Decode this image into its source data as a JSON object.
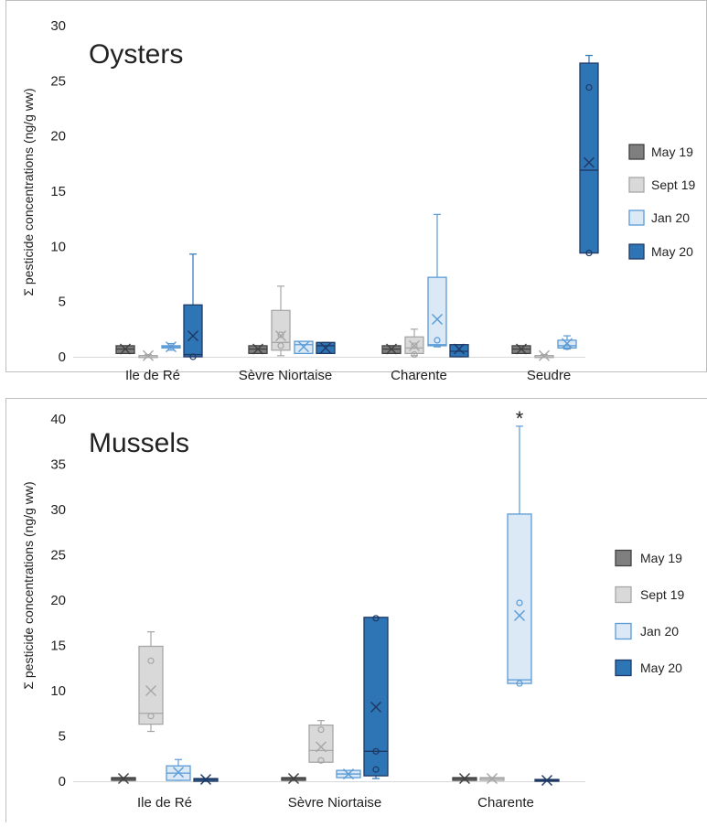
{
  "colors": {
    "May 19": {
      "fill": "#7f7f7f",
      "stroke": "#404040",
      "whisker": "#404040"
    },
    "Sept 19": {
      "fill": "#d9d9d9",
      "stroke": "#a6a6a6",
      "whisker": "#a6a6a6"
    },
    "Jan 20": {
      "fill": "#dbe8f6",
      "stroke": "#5b9bd5",
      "whisker": "#5b9bd5"
    },
    "May 20": {
      "fill": "#2e75b6",
      "stroke": "#1f3864",
      "whisker": "#2e75b6"
    }
  },
  "chart_data": [
    {
      "type": "box",
      "title": "Oysters",
      "ylabel": "Σ pesticide concentrations (ng/g ww)",
      "ylim": [
        0,
        30
      ],
      "yticks": [
        "0",
        "5",
        "10",
        "15",
        "20",
        "25",
        "30"
      ],
      "categories": [
        "Ile de Ré",
        "Sèvre Niortaise",
        "Charente",
        "Seudre"
      ],
      "legend": [
        "May 19",
        "Sept 19",
        "Jan 20",
        "May 20"
      ],
      "legend_position": "right",
      "series": [
        {
          "name": "May 19",
          "boxes": [
            {
              "min": 0.3,
              "q1": 0.3,
              "median": 0.7,
              "q3": 1.0,
              "max": 1.0,
              "mean": 0.7,
              "points": []
            },
            {
              "min": 0.3,
              "q1": 0.3,
              "median": 0.7,
              "q3": 1.0,
              "max": 1.0,
              "mean": 0.7,
              "points": []
            },
            {
              "min": 0.3,
              "q1": 0.3,
              "median": 0.7,
              "q3": 1.0,
              "max": 1.0,
              "mean": 0.7,
              "points": []
            },
            {
              "min": 0.3,
              "q1": 0.3,
              "median": 0.7,
              "q3": 1.0,
              "max": 1.0,
              "mean": 0.7,
              "points": []
            }
          ]
        },
        {
          "name": "Sept 19",
          "boxes": [
            {
              "min": 0.0,
              "q1": 0.0,
              "median": 0.1,
              "q3": 0.1,
              "max": 0.2,
              "mean": 0.1,
              "points": []
            },
            {
              "min": 0.1,
              "q1": 0.6,
              "median": 1.3,
              "q3": 4.2,
              "max": 6.4,
              "mean": 1.9,
              "points": [
                1.0,
                2.0
              ]
            },
            {
              "min": 0.1,
              "q1": 0.3,
              "median": 0.8,
              "q3": 1.8,
              "max": 2.5,
              "mean": 1.0,
              "points": [
                0.2,
                1.0
              ]
            },
            {
              "min": 0.0,
              "q1": 0.0,
              "median": 0.1,
              "q3": 0.1,
              "max": 0.2,
              "mean": 0.1,
              "points": []
            }
          ]
        },
        {
          "name": "Jan 20",
          "boxes": [
            {
              "min": 0.6,
              "q1": 0.8,
              "median": 0.9,
              "q3": 1.0,
              "max": 1.2,
              "mean": 0.9,
              "points": []
            },
            {
              "min": 0.3,
              "q1": 0.3,
              "median": 1.1,
              "q3": 1.4,
              "max": 1.4,
              "mean": 0.9,
              "points": []
            },
            {
              "min": 0.9,
              "q1": 1.0,
              "median": 1.1,
              "q3": 7.2,
              "max": 12.9,
              "mean": 3.4,
              "points": [
                1.5
              ]
            },
            {
              "min": 0.7,
              "q1": 0.8,
              "median": 1.0,
              "q3": 1.5,
              "max": 1.9,
              "mean": 1.2,
              "points": [
                0.9
              ]
            }
          ]
        },
        {
          "name": "May 20",
          "boxes": [
            {
              "min": 0.0,
              "q1": 0.0,
              "median": 0.2,
              "q3": 4.7,
              "max": 9.3,
              "mean": 1.9,
              "points": [
                0.0
              ]
            },
            {
              "min": 0.3,
              "q1": 0.3,
              "median": 1.0,
              "q3": 1.3,
              "max": 1.3,
              "mean": 0.8,
              "points": []
            },
            {
              "min": 0.0,
              "q1": 0.0,
              "median": 0.5,
              "q3": 1.1,
              "max": 1.1,
              "mean": 0.7,
              "points": []
            },
            {
              "min": 9.4,
              "q1": 9.4,
              "median": 16.9,
              "q3": 26.6,
              "max": 27.3,
              "mean": 17.6,
              "points": [
                9.4,
                24.4
              ]
            }
          ]
        }
      ]
    },
    {
      "type": "box",
      "title": "Mussels",
      "ylabel": "Σ pesticide concentrations (ng/g ww)",
      "ylim": [
        0,
        40
      ],
      "yticks": [
        "0",
        "5",
        "10",
        "15",
        "20",
        "25",
        "30",
        "35",
        "40"
      ],
      "categories": [
        "Ile de Ré",
        "Sèvre Niortaise",
        "Charente"
      ],
      "legend": [
        "May 19",
        "Sept 19",
        "Jan 20",
        "May 20"
      ],
      "legend_position": "right",
      "annotations": [
        {
          "text": "*",
          "category": "Charente",
          "series": "Jan 20",
          "y": 40.3
        }
      ],
      "series": [
        {
          "name": "May 19",
          "boxes": [
            {
              "min": 0.1,
              "q1": 0.1,
              "median": 0.3,
              "q3": 0.4,
              "max": 0.4,
              "mean": 0.3,
              "points": []
            },
            {
              "min": 0.1,
              "q1": 0.1,
              "median": 0.3,
              "q3": 0.4,
              "max": 0.4,
              "mean": 0.3,
              "points": []
            },
            {
              "min": 0.1,
              "q1": 0.1,
              "median": 0.3,
              "q3": 0.4,
              "max": 0.4,
              "mean": 0.3,
              "points": []
            }
          ]
        },
        {
          "name": "Sept 19",
          "boxes": [
            {
              "min": 5.5,
              "q1": 6.3,
              "median": 7.5,
              "q3": 14.9,
              "max": 16.5,
              "mean": 10.0,
              "points": [
                7.2,
                13.3
              ]
            },
            {
              "min": 2.1,
              "q1": 2.1,
              "median": 3.4,
              "q3": 6.2,
              "max": 6.7,
              "mean": 3.8,
              "points": [
                2.3,
                5.7
              ]
            },
            {
              "min": 0.1,
              "q1": 0.1,
              "median": 0.3,
              "q3": 0.4,
              "max": 0.4,
              "mean": 0.3,
              "points": []
            }
          ]
        },
        {
          "name": "Jan 20",
          "boxes": [
            {
              "min": 0.1,
              "q1": 0.1,
              "median": 0.9,
              "q3": 1.7,
              "max": 2.4,
              "mean": 1.0,
              "points": []
            },
            {
              "min": 0.4,
              "q1": 0.4,
              "median": 0.8,
              "q3": 1.2,
              "max": 1.2,
              "mean": 0.8,
              "points": []
            },
            {
              "min": 10.8,
              "q1": 10.8,
              "median": 11.2,
              "q3": 29.5,
              "max": 39.2,
              "mean": 18.3,
              "points": [
                10.8,
                19.7
              ]
            }
          ]
        },
        {
          "name": "May 20",
          "boxes": [
            {
              "min": 0.0,
              "q1": 0.0,
              "median": 0.2,
              "q3": 0.3,
              "max": 0.3,
              "mean": 0.2,
              "points": []
            },
            {
              "min": 0.3,
              "q1": 0.6,
              "median": 3.3,
              "q3": 18.1,
              "max": 18.1,
              "mean": 8.2,
              "points": [
                1.3,
                3.3,
                18.0
              ]
            },
            {
              "min": 0.0,
              "q1": 0.0,
              "median": 0.1,
              "q3": 0.2,
              "max": 0.2,
              "mean": 0.1,
              "points": []
            }
          ]
        }
      ]
    }
  ]
}
